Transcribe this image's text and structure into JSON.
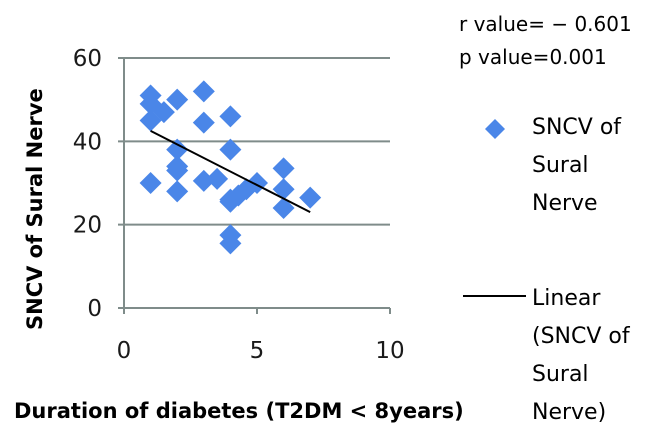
{
  "stats": {
    "r_text": "r value= − 0.601",
    "p_text": "p value=0.001"
  },
  "legend": {
    "points_label": [
      "SNCV of",
      "Sural",
      "Nerve"
    ],
    "line_label": [
      "Linear",
      "(SNCV of",
      "Sural",
      "Nerve)"
    ]
  },
  "colors": {
    "marker": "#4a86e8",
    "trendline": "#000000",
    "axis": "#7f8c8a"
  },
  "chart_data": {
    "type": "scatter",
    "title": "",
    "xlabel": "Duration of diabetes (T2DM < 8years)",
    "ylabel": "SNCV of Sural Nerve",
    "xlim": [
      0,
      10
    ],
    "ylim": [
      0,
      60
    ],
    "xticks": [
      "0",
      "5",
      "10"
    ],
    "yticks": [
      "0",
      "20",
      "40",
      "60"
    ],
    "grid": "horizontal",
    "legend_position": "right",
    "series": [
      {
        "name": "SNCV of Sural Nerve",
        "marker": "diamond",
        "points": [
          [
            1,
            51
          ],
          [
            1,
            49
          ],
          [
            1,
            45
          ],
          [
            1,
            30
          ],
          [
            1.5,
            47
          ],
          [
            2,
            50
          ],
          [
            2,
            38
          ],
          [
            2,
            34
          ],
          [
            2,
            33
          ],
          [
            2,
            28
          ],
          [
            3,
            52
          ],
          [
            3,
            44.5
          ],
          [
            3,
            30.5
          ],
          [
            3.5,
            31
          ],
          [
            4,
            46
          ],
          [
            4,
            38
          ],
          [
            4,
            26
          ],
          [
            4,
            25.5
          ],
          [
            4,
            17.5
          ],
          [
            4,
            15.5
          ],
          [
            4.3,
            27
          ],
          [
            4.6,
            28.5
          ],
          [
            5,
            30
          ],
          [
            6,
            33.5
          ],
          [
            6,
            28.5
          ],
          [
            6,
            24
          ],
          [
            7,
            26.5
          ]
        ]
      },
      {
        "name": "Linear (SNCV of Sural Nerve)",
        "type": "trendline",
        "points": [
          [
            1,
            42.5
          ],
          [
            7,
            23
          ]
        ]
      }
    ]
  }
}
